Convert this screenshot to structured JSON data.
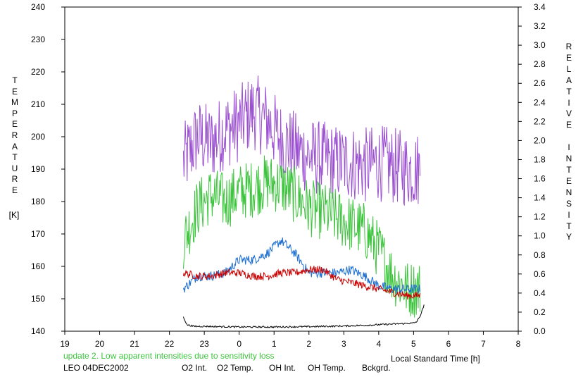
{
  "chart_data": {
    "type": "line",
    "y_left_label": "TEMPERATURE",
    "y_left_unit": "[K]",
    "y_right_label": "RELATIVE INTENSITY",
    "xlabel": "Local Standard Time [h]",
    "note": "update 2. Low apparent intensities due to sensitivity loss",
    "station": "LEO 04DEC2002",
    "x_ticks": [
      "19",
      "20",
      "21",
      "22",
      "23",
      "0",
      "1",
      "2",
      "3",
      "4",
      "5",
      "6",
      "7",
      "8"
    ],
    "y_left_ticks": [
      "140",
      "150",
      "160",
      "170",
      "180",
      "190",
      "200",
      "210",
      "220",
      "230",
      "240"
    ],
    "y_right_ticks": [
      "0.0",
      "0.2",
      "0.4",
      "0.6",
      "0.8",
      "1.0",
      "1.2",
      "1.4",
      "1.6",
      "1.8",
      "2.0",
      "2.2",
      "2.4",
      "2.6",
      "2.8",
      "3.0",
      "3.2",
      "3.4"
    ],
    "xlim": [
      19,
      32
    ],
    "ylim_left": [
      140,
      240
    ],
    "ylim_right": [
      0,
      3.4
    ],
    "legend": [
      {
        "label": "O2 Int.",
        "color": "#1f6fd1"
      },
      {
        "label": "O2 Temp.",
        "color": "#9b4fd1"
      },
      {
        "label": "OH Int.",
        "color": "#cc0000"
      },
      {
        "label": "OH Temp.",
        "color": "#3cc43c"
      },
      {
        "label": "Bckgrd.",
        "color": "#000000"
      }
    ],
    "series": [
      {
        "key": "o2temp",
        "axis": "left",
        "color": "#9b4fd1",
        "x": [
          22.4,
          22.8,
          23.2,
          23.6,
          24.0,
          24.4,
          24.8,
          25.2,
          25.6,
          26.0,
          26.4,
          26.8,
          27.2,
          27.6,
          28.0,
          28.4,
          28.8,
          29.2
        ],
        "y": [
          192,
          200,
          198,
          202,
          204,
          208,
          205,
          199,
          196,
          194,
          193,
          192,
          192,
          191,
          192,
          191,
          190,
          190
        ],
        "amp": 12
      },
      {
        "key": "ohtemp",
        "axis": "left",
        "color": "#3cc43c",
        "x": [
          22.4,
          22.8,
          23.2,
          23.6,
          24.0,
          24.4,
          24.8,
          25.2,
          25.6,
          26.0,
          26.4,
          26.8,
          27.2,
          27.6,
          28.0,
          28.4,
          28.8,
          29.2
        ],
        "y": [
          168,
          178,
          182,
          180,
          183,
          184,
          186,
          185,
          182,
          178,
          177,
          175,
          173,
          171,
          165,
          157,
          153,
          153
        ],
        "amp": 9
      },
      {
        "key": "o2int",
        "axis": "left",
        "color": "#1f6fd1",
        "x": [
          22.4,
          22.8,
          23.2,
          23.6,
          24.0,
          24.4,
          24.8,
          25.2,
          25.6,
          26.0,
          26.4,
          26.8,
          27.2,
          27.6,
          28.0,
          28.4,
          28.8,
          29.2
        ],
        "y": [
          153,
          157,
          157,
          158,
          162,
          162,
          164,
          168,
          164,
          158,
          158,
          158,
          159,
          157,
          154,
          153,
          153,
          153
        ],
        "amp": 1.5
      },
      {
        "key": "ohint",
        "axis": "left",
        "color": "#cc0000",
        "x": [
          22.4,
          22.8,
          23.2,
          23.6,
          24.0,
          24.4,
          24.8,
          25.2,
          25.6,
          26.0,
          26.4,
          26.8,
          27.2,
          27.6,
          28.0,
          28.4,
          28.8,
          29.2
        ],
        "y": [
          158,
          157,
          157,
          158,
          158,
          157,
          157,
          158,
          158,
          159,
          159,
          156,
          155,
          154,
          153,
          152,
          151,
          151
        ],
        "amp": 1.2
      },
      {
        "key": "bckgrd",
        "axis": "left",
        "color": "#000000",
        "x": [
          22.4,
          22.5,
          22.7,
          23.0,
          24.0,
          25.0,
          26.0,
          27.0,
          28.0,
          29.0,
          29.1,
          29.2,
          29.3
        ],
        "y": [
          144.5,
          142,
          141.5,
          141.5,
          141.3,
          141.3,
          141.4,
          141.6,
          142,
          142.5,
          143,
          145,
          148
        ],
        "amp": 0.25
      }
    ]
  }
}
